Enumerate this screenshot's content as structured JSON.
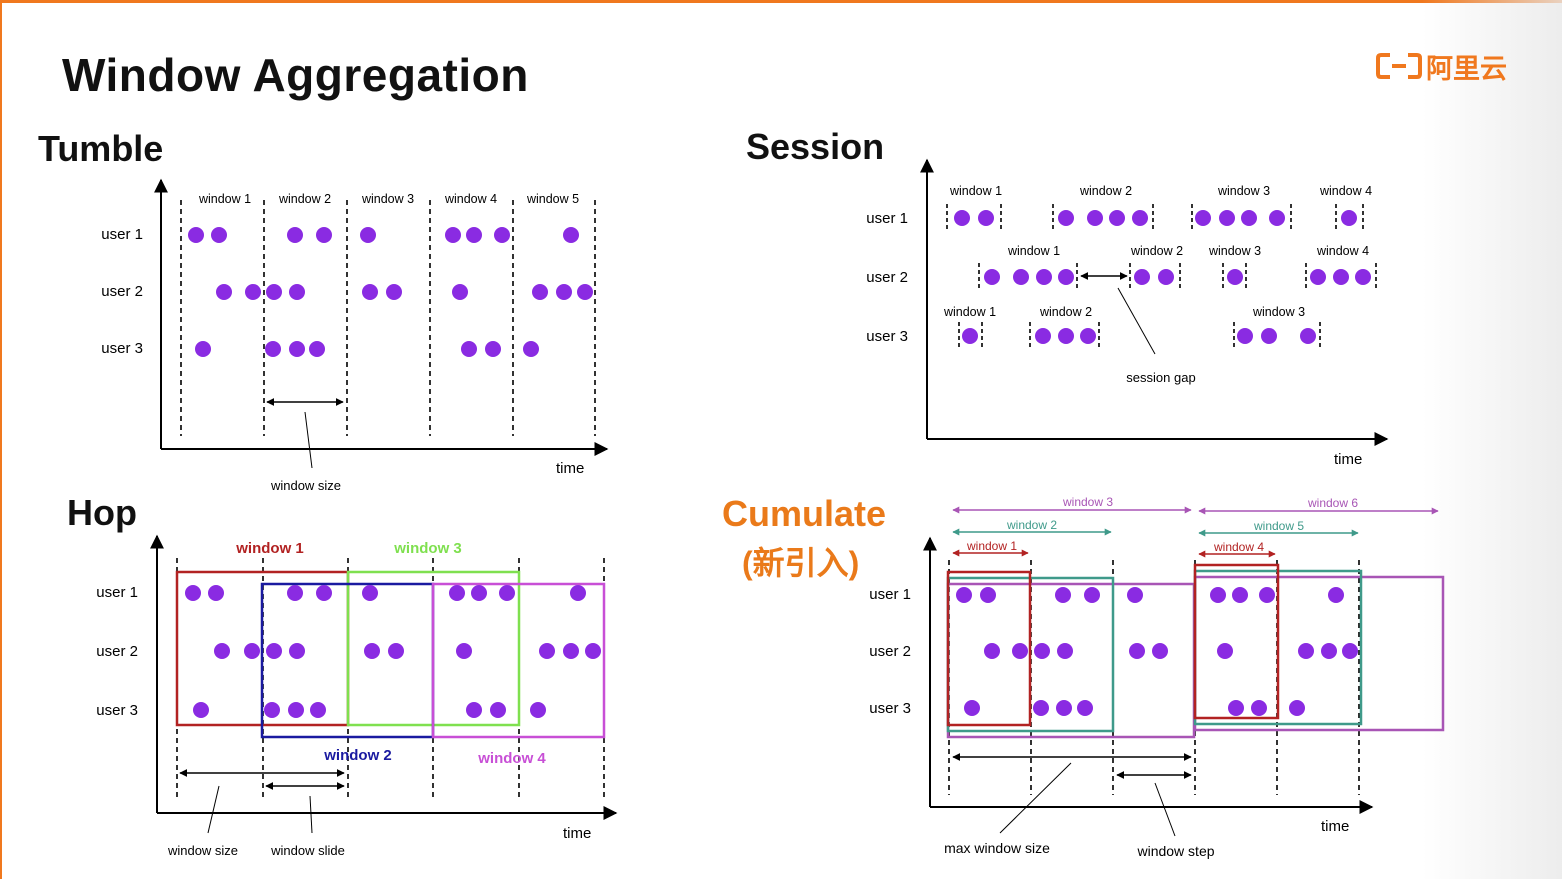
{
  "title": "Window Aggregation",
  "logo": {
    "text": "阿里云",
    "color": "#f0781e"
  },
  "colors": {
    "dot": "#8a2be2",
    "accent_orange": "#ea7a1a",
    "hop_window_1": "#b22222",
    "hop_window_2": "#1a1aa0",
    "hop_window_3": "#7fe04f",
    "hop_window_4": "#c84fd6",
    "cumulate_window_1": "#b22222",
    "cumulate_window_2": "#3f9a8a",
    "cumulate_window_3": "#a855b5"
  },
  "common": {
    "users": [
      "user 1",
      "user 2",
      "user 3"
    ],
    "time_label": "time"
  },
  "tumble": {
    "title": "Tumble",
    "windows": [
      "window 1",
      "window 2",
      "window 3",
      "window 4",
      "window 5"
    ],
    "annotation": "window size"
  },
  "session": {
    "title": "Session",
    "user1_windows": [
      "window 1",
      "window 2",
      "window 3",
      "window 4"
    ],
    "user2_windows": [
      "window 1",
      "window 2",
      "window 3",
      "window 4"
    ],
    "user3_windows": [
      "window 1",
      "window 2",
      "window 3"
    ],
    "annotation": "session gap"
  },
  "hop": {
    "title": "Hop",
    "windows": [
      "window 1",
      "window 2",
      "window 3",
      "window 4"
    ],
    "annotations": [
      "window size",
      "window slide"
    ]
  },
  "cumulate": {
    "title": "Cumulate",
    "subtitle": "(新引入)",
    "windows": [
      "window 1",
      "window 2",
      "window 3",
      "window 4",
      "window 5",
      "window 6"
    ],
    "annotations": [
      "max window size",
      "window step"
    ]
  }
}
